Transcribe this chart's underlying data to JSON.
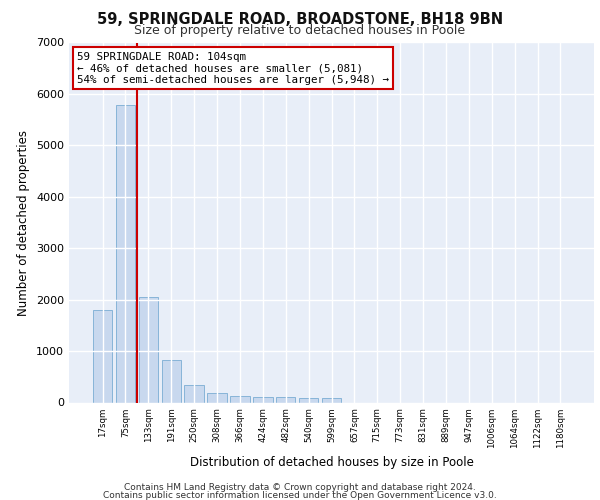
{
  "title1": "59, SPRINGDALE ROAD, BROADSTONE, BH18 9BN",
  "title2": "Size of property relative to detached houses in Poole",
  "xlabel": "Distribution of detached houses by size in Poole",
  "ylabel": "Number of detached properties",
  "bar_color": "#c8d8ee",
  "bar_edge_color": "#7aadd4",
  "background_color": "#e8eef8",
  "grid_color": "#ffffff",
  "annotation_line1": "59 SPRINGDALE ROAD: 104sqm",
  "annotation_line2": "← 46% of detached houses are smaller (5,081)",
  "annotation_line3": "54% of semi-detached houses are larger (5,948) →",
  "annotation_box_color": "#cc0000",
  "vline_x": 1.5,
  "vline_color": "#cc0000",
  "categories": [
    "17sqm",
    "75sqm",
    "133sqm",
    "191sqm",
    "250sqm",
    "308sqm",
    "366sqm",
    "424sqm",
    "482sqm",
    "540sqm",
    "599sqm",
    "657sqm",
    "715sqm",
    "773sqm",
    "831sqm",
    "889sqm",
    "947sqm",
    "1006sqm",
    "1064sqm",
    "1122sqm",
    "1180sqm"
  ],
  "values": [
    1790,
    5780,
    2060,
    830,
    345,
    185,
    130,
    115,
    110,
    95,
    80,
    0,
    0,
    0,
    0,
    0,
    0,
    0,
    0,
    0,
    0
  ],
  "ylim": [
    0,
    7000
  ],
  "yticks": [
    0,
    1000,
    2000,
    3000,
    4000,
    5000,
    6000,
    7000
  ],
  "footer1": "Contains HM Land Registry data © Crown copyright and database right 2024.",
  "footer2": "Contains public sector information licensed under the Open Government Licence v3.0."
}
